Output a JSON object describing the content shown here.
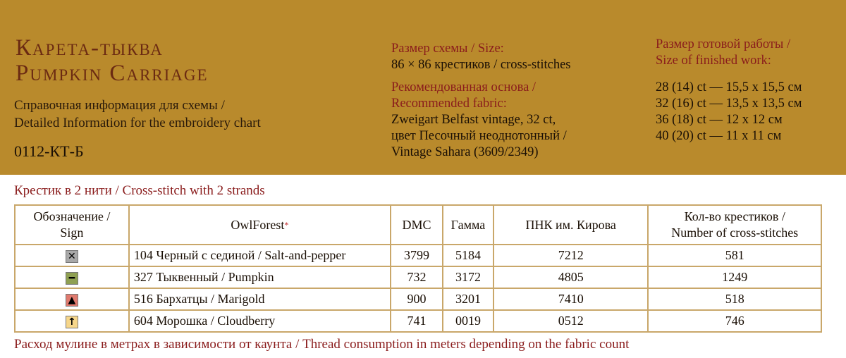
{
  "header": {
    "title_ru": "Карета-тыква",
    "title_en": "Pumpkin Carriage",
    "subtitle_ru": "Справочная информация для схемы /",
    "subtitle_en": "Detailed Information for the embroidery chart",
    "code": "0112-КТ-Б"
  },
  "size": {
    "label": "Размер схемы / Size:",
    "value": "86 × 86 крестиков / cross-stitches"
  },
  "fabric": {
    "label_ru": "Рекомендованная основа /",
    "label_en": "Recommended fabric:",
    "lines": [
      "Zweigart Belfast vintage, 32 ct,",
      "цвет Песочный неоднотонный /",
      "Vintage Sahara (3609/2349)"
    ]
  },
  "finished": {
    "label_ru": "Размер готовой работы /",
    "label_en": "Size of finished work:",
    "lines": [
      "28 (14) ct — 15,5 x 15,5 см",
      "32 (16) ct — 13,5 x 13,5 см",
      "36 (18) ct — 12 x 12 см",
      "40 (20) ct — 11 x 11 см"
    ]
  },
  "caption": "Крестик в 2 нити / Cross-stitch with 2 strands",
  "table": {
    "headers": {
      "sign_ru": "Обозначение /",
      "sign_en": "Sign",
      "owl": "OwlForest",
      "owl_mark": "*",
      "dmc": "DMC",
      "gamma": "Гамма",
      "pnk": "ПНК им. Кирова",
      "count_ru": "Кол-во крестиков /",
      "count_en": "Number of cross-stitches"
    },
    "rows": [
      {
        "sign": "✕",
        "sign_icon": "x-icon",
        "sign_bg": "#a8a8a8",
        "name": "104 Черный с сединой / Salt-and-pepper",
        "dmc": "3799",
        "gamma": "5184",
        "pnk": "7212",
        "count": "581"
      },
      {
        "sign": "━",
        "sign_icon": "dash-icon",
        "sign_bg": "#8fa052",
        "name": "327 Тыквенный / Pumpkin",
        "dmc": "732",
        "gamma": "3172",
        "pnk": "4805",
        "count": "1249"
      },
      {
        "sign": "▲",
        "sign_icon": "triangle-icon",
        "sign_bg": "#e07a6e",
        "name": "516 Бархатцы / Marigold",
        "dmc": "900",
        "gamma": "3201",
        "pnk": "7410",
        "count": "518"
      },
      {
        "sign": "↑",
        "sign_icon": "arrow-up-icon",
        "sign_bg": "#f6d68a",
        "name": "604 Морошка / Cloudberry",
        "dmc": "741",
        "gamma": "0019",
        "pnk": "0512",
        "count": "746"
      }
    ]
  },
  "footer": "Расход мулине в метрах в зависимости от каунта / Thread consumption in meters depending on the fabric count"
}
